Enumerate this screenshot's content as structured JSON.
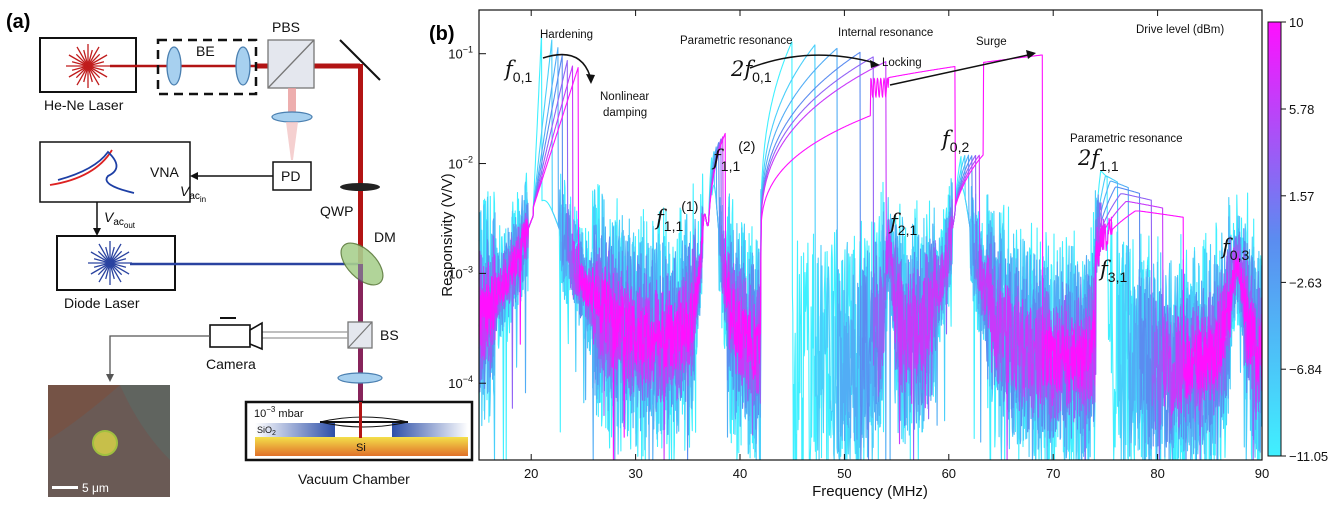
{
  "panel_a": {
    "label": "(a)",
    "components": {
      "laser": "He-Ne Laser",
      "be": "BE",
      "pbs": "PBS",
      "vna": "VNA",
      "pd": "PD",
      "v_in_main": "V",
      "v_in_sub": "ac",
      "v_in_subsub": "in",
      "v_out_main": "V",
      "v_out_sub": "ac",
      "v_out_subsub": "out",
      "qwp": "QWP",
      "dm": "DM",
      "diode": "Diode Laser",
      "bs": "BS",
      "camera": "Camera",
      "pressure": "10",
      "pressure_exp": "−3",
      "pressure_unit": " mbar",
      "sio2": "SiO",
      "sio2_sub": "2",
      "si": "Si",
      "chamber": "Vacuum Chamber",
      "scale": "5 μm"
    }
  },
  "panel_b": {
    "label": "(b)",
    "annotations": {
      "hardening": "Hardening",
      "nonlinear_1": "Nonlinear",
      "nonlinear_2": "damping",
      "param1": "Parametric resonance",
      "internal": "Internal resonance",
      "locking": "Locking",
      "surge": "Surge",
      "param2": "Parametric resonance"
    },
    "peaks": [
      {
        "main": "f",
        "sub": "0,1",
        "sup": ""
      },
      {
        "main": "2f",
        "sub": "0,1",
        "sup": ""
      },
      {
        "main": "f",
        "sub": "1,1",
        "sup": "(1)"
      },
      {
        "main": "f",
        "sub": "1,1",
        "sup": "(2)"
      },
      {
        "main": "f",
        "sub": "2,1",
        "sup": ""
      },
      {
        "main": "f",
        "sub": "0,2",
        "sup": ""
      },
      {
        "main": "2f",
        "sub": "1,1",
        "sup": ""
      },
      {
        "main": "f",
        "sub": "3,1",
        "sup": ""
      },
      {
        "main": "f",
        "sub": "0,3",
        "sup": ""
      }
    ]
  },
  "chart_data": {
    "type": "line",
    "xlabel": "Frequency (MHz)",
    "ylabel": "Responsivity (V/V)",
    "xlim": [
      15,
      90
    ],
    "ylim": [
      2e-05,
      0.25
    ],
    "y_scale": "log",
    "x_ticks": [
      20,
      30,
      40,
      50,
      60,
      70,
      80,
      90
    ],
    "y_ticks": [
      {
        "value": 0.1,
        "base": "10",
        "exp": "−1"
      },
      {
        "value": 0.01,
        "base": "10",
        "exp": "−2"
      },
      {
        "value": 0.001,
        "base": "10",
        "exp": "−3"
      },
      {
        "value": 0.0001,
        "base": "10",
        "exp": "−4"
      }
    ],
    "colorbar": {
      "title": "Drive level (dBm)",
      "ticks": [
        "10",
        "5.78",
        "1.57",
        "−2.63",
        "−6.84",
        "−11.05"
      ],
      "range": [
        -11.05,
        10
      ],
      "color_low": "#40f0ff",
      "color_mid": "#5b8cf0",
      "color_high": "#ff10ff"
    },
    "series_count": 7,
    "resonances_mhz": {
      "f01": [
        21.0,
        22.0,
        22.6,
        23.0,
        23.5,
        24.0,
        24.5
      ],
      "f01_peak": [
        0.16,
        0.14,
        0.12,
        0.1,
        0.09,
        0.08,
        0.075
      ],
      "f11_1": 36.6,
      "f11_2": 37.5,
      "param1_start": 42.0,
      "param1_drop": [
        45.0,
        47.2,
        49.3,
        51.5,
        52.8,
        54.0,
        69.0
      ],
      "f21": 54.3,
      "f02": 61.2,
      "param2_start": 74.0,
      "param2_drop": [
        75.2,
        76.2,
        77.2,
        78.3,
        79.4,
        80.5,
        82.5
      ],
      "f31": 75.0,
      "f03": 87.6
    }
  }
}
